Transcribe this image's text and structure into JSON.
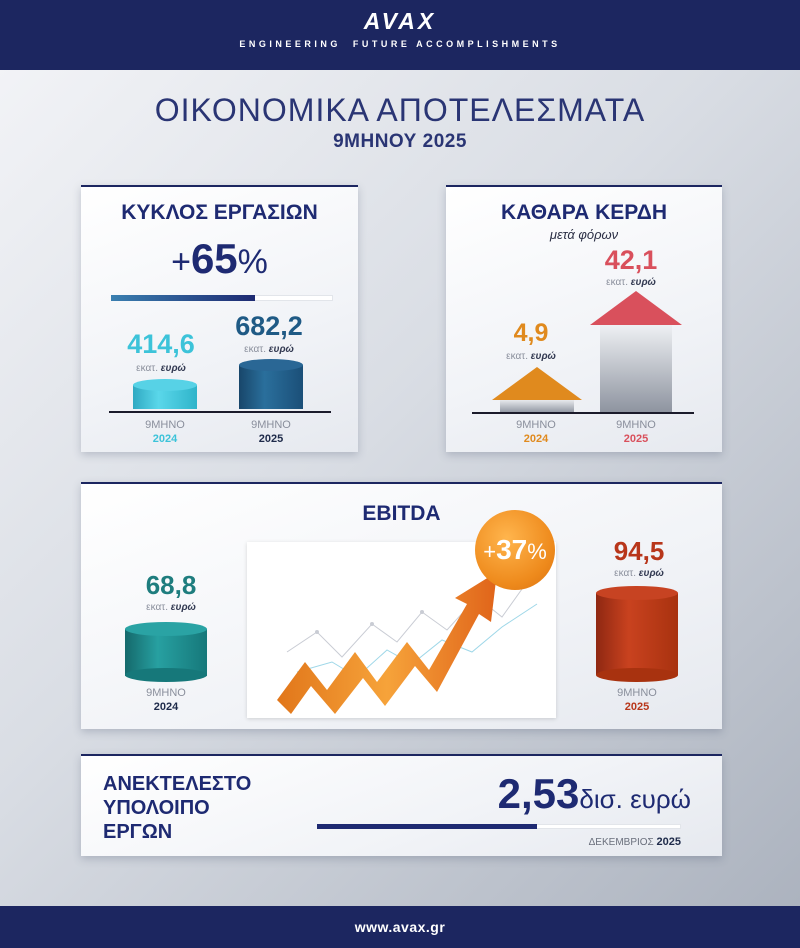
{
  "header": {
    "logo": "AVAX",
    "tagline": "ENGINEERING  FUTURE ACCOMPLISHMENTS"
  },
  "title": "ΟΙΚΟΝΟΜΙΚΑ ΑΠΟΤΕΛΕΣΜΑΤΑ",
  "subtitle": "9ΜΗΝΟΥ 2025",
  "revenue": {
    "title": "ΚΥΚΛΟΣ ΕΡΓΑΣΙΩΝ",
    "change_sign": "+",
    "change_value": "65",
    "change_pct": "%",
    "progress_fraction": 0.65,
    "bars": [
      {
        "value": "414,6",
        "unit_light": "εκατ.",
        "unit_bold": "ευρώ",
        "period": "9ΜΗΝΟ",
        "year": "2024",
        "color": "#3cc3d9"
      },
      {
        "value": "682,2",
        "unit_light": "εκατ.",
        "unit_bold": "ευρώ",
        "period": "9ΜΗΝΟ",
        "year": "2025",
        "color": "#1f5a85"
      }
    ]
  },
  "profit": {
    "title": "ΚΑΘΑΡΑ ΚΕΡΔΗ",
    "note": "μετά φόρων",
    "bars": [
      {
        "value": "4,9",
        "unit_light": "εκατ.",
        "unit_bold": "ευρώ",
        "period": "9ΜΗΝΟ",
        "year": "2024",
        "color": "#e08a1e"
      },
      {
        "value": "42,1",
        "unit_light": "εκατ.",
        "unit_bold": "ευρώ",
        "period": "9ΜΗΝΟ",
        "year": "2025",
        "color": "#d9505c"
      }
    ]
  },
  "ebitda": {
    "title": "EBITDA",
    "badge_sign": "+",
    "badge_value": "37",
    "badge_pct": "%",
    "bars": [
      {
        "value": "68,8",
        "unit_light": "εκατ.",
        "unit_bold": "ευρώ",
        "period": "9ΜΗΝΟ",
        "year": "2024",
        "color": "#1e8a8c"
      },
      {
        "value": "94,5",
        "unit_light": "εκατ.",
        "unit_bold": "ευρώ",
        "period": "9ΜΗΝΟ",
        "year": "2025",
        "color": "#b8361b"
      }
    ]
  },
  "backlog": {
    "title_lines": [
      "ΑΝΕΚΤΕΛΕΣΤΟ",
      "ΥΠΟΛΟΙΠΟ",
      "ΕΡΓΩΝ"
    ],
    "value": "2,53",
    "unit": "δισ. ευρώ",
    "date_month": "ΔΕΚΕΜΒΡΙΟΣ",
    "date_year": "2025"
  },
  "footer": {
    "url": "www.avax.gr"
  },
  "colors": {
    "navy": "#1c2660",
    "orange": "#f29a2e",
    "teal": "#1e8a8c",
    "red": "#b8361b"
  }
}
